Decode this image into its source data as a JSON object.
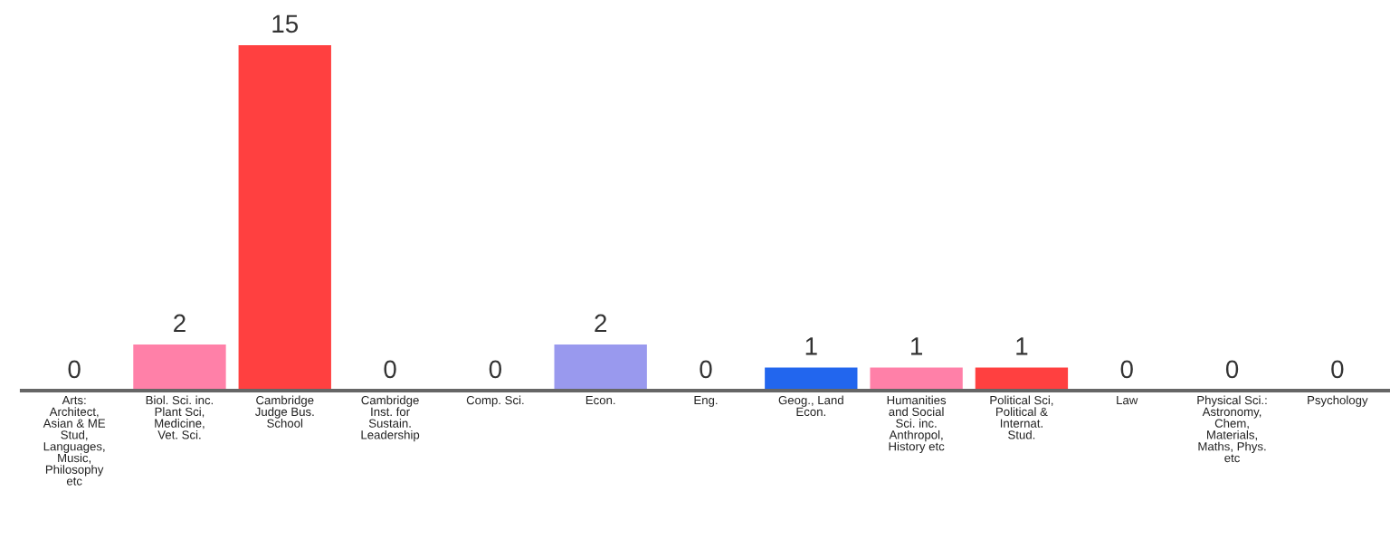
{
  "chart_data": {
    "type": "bar",
    "categories": [
      "Arts:\nArchitect,\nAsian & ME\nStud,\nLanguages,\nMusic,\nPhilosophy\netc",
      "Biol. Sci. inc.\nPlant Sci,\nMedicine,\nVet. Sci.",
      "Cambridge\nJudge Bus.\nSchool",
      "Cambridge\nInst. for\nSustain.\nLeadership",
      "Comp. Sci.",
      "Econ.",
      "Eng.",
      "Geog., Land\nEcon.",
      "Humanities\nand Social\nSci. inc.\nAnthropol,\nHistory etc",
      "Political Sci,\nPolitical &\nInternat.\nStud.",
      "Law",
      "Physical Sci.:\nAstronomy,\nChem,\nMaterials,\nMaths, Phys.\netc",
      "Psychology"
    ],
    "values": [
      0,
      2,
      15,
      0,
      0,
      2,
      0,
      1,
      1,
      1,
      0,
      0,
      0
    ],
    "colors": [
      "#ff80a8",
      "#ff80a8",
      "#ff4040",
      "#9999ee",
      "#2266ee",
      "#9999ee",
      "#ff80a8",
      "#2266ee",
      "#ff80a8",
      "#ff4040",
      "#9999ee",
      "#2266ee",
      "#ff80a8"
    ],
    "ylim": [
      0,
      15
    ],
    "tick_labels": "x",
    "data_labels": true,
    "grid": false
  }
}
